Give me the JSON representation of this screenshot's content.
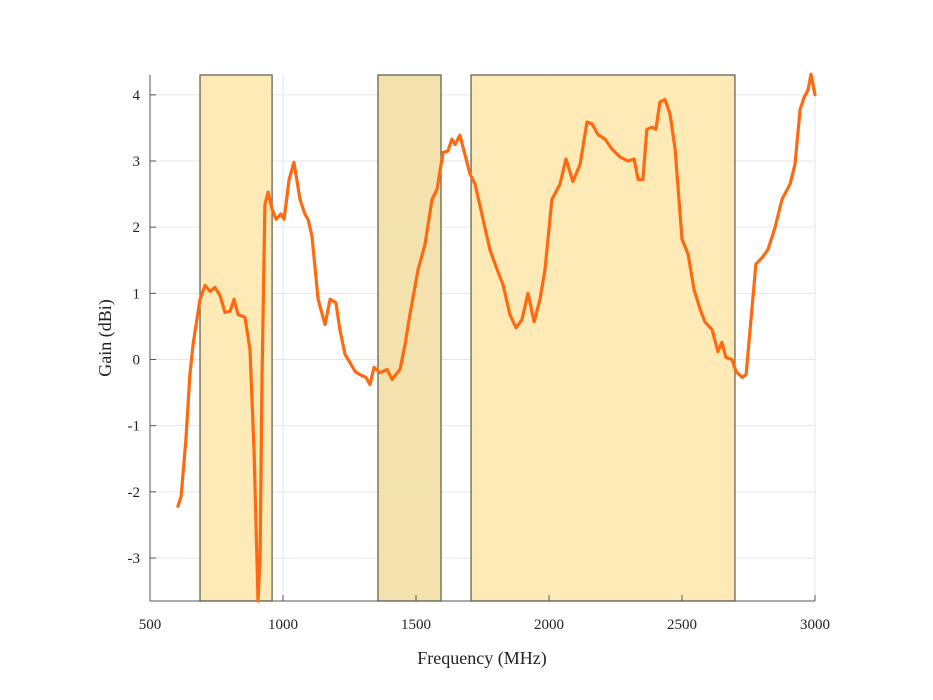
{
  "chart_data": {
    "type": "line",
    "title": "",
    "xlabel": "Frequency (MHz)",
    "ylabel": "Gain (dBi)",
    "xlim": [
      500,
      3000
    ],
    "ylim": [
      -3.65,
      4.3
    ],
    "xticks": [
      500,
      1000,
      1500,
      2000,
      2500,
      3000
    ],
    "yticks": [
      -3,
      -2,
      -1,
      0,
      1,
      2,
      3,
      4
    ],
    "grid": true,
    "colors": {
      "line": "#ff6a10",
      "band": "#fde8b0",
      "band_alt": "#f2dfa6",
      "band_edge": "#6b6352",
      "grid": "#e6e6e6"
    },
    "bands": [
      {
        "from": 688,
        "to": 959,
        "shade": "band"
      },
      {
        "from": 1357,
        "to": 1594,
        "shade": "band_alt"
      },
      {
        "from": 1707,
        "to": 2699,
        "shade": "band"
      }
    ],
    "series": [
      {
        "name": "Gain",
        "x": [
          605,
          617,
          635,
          650,
          662,
          688,
          707,
          726,
          744,
          763,
          782,
          801,
          816,
          831,
          857,
          876,
          891,
          902,
          906,
          914,
          921,
          932,
          944,
          959,
          974,
          992,
          1004,
          1023,
          1041,
          1064,
          1083,
          1094,
          1109,
          1132,
          1158,
          1177,
          1199,
          1214,
          1233,
          1271,
          1289,
          1312,
          1327,
          1342,
          1365,
          1391,
          1410,
          1440,
          1459,
          1477,
          1508,
          1534,
          1560,
          1579,
          1602,
          1620,
          1635,
          1647,
          1665,
          1684,
          1703,
          1722,
          1748,
          1778,
          1805,
          1827,
          1853,
          1876,
          1898,
          1921,
          1944,
          1966,
          1985,
          2011,
          2041,
          2064,
          2090,
          2117,
          2143,
          2162,
          2184,
          2211,
          2237,
          2267,
          2297,
          2320,
          2335,
          2353,
          2368,
          2387,
          2402,
          2417,
          2436,
          2455,
          2474,
          2500,
          2523,
          2545,
          2568,
          2586,
          2613,
          2635,
          2650,
          2665,
          2688,
          2703,
          2726,
          2741,
          2756,
          2778,
          2801,
          2823,
          2850,
          2876,
          2906,
          2925,
          2944,
          2959,
          2974,
          2985,
          3000
        ],
        "y": [
          -2.22,
          -2.07,
          -1.21,
          -0.23,
          0.23,
          0.91,
          1.12,
          1.03,
          1.09,
          0.97,
          0.71,
          0.73,
          0.91,
          0.68,
          0.64,
          0.15,
          -1.36,
          -3.0,
          -3.65,
          -3.0,
          -0.3,
          2.34,
          2.53,
          2.27,
          2.12,
          2.2,
          2.12,
          2.72,
          2.98,
          2.42,
          2.19,
          2.12,
          1.86,
          0.91,
          0.53,
          0.91,
          0.86,
          0.45,
          0.08,
          -0.18,
          -0.23,
          -0.27,
          -0.38,
          -0.12,
          -0.2,
          -0.15,
          -0.3,
          -0.15,
          0.23,
          0.68,
          1.36,
          1.74,
          2.42,
          2.57,
          3.13,
          3.15,
          3.33,
          3.25,
          3.39,
          3.1,
          2.8,
          2.65,
          2.19,
          1.66,
          1.36,
          1.13,
          0.68,
          0.48,
          0.6,
          1.0,
          0.57,
          0.91,
          1.36,
          2.42,
          2.65,
          3.03,
          2.69,
          2.95,
          3.59,
          3.56,
          3.4,
          3.33,
          3.18,
          3.06,
          3.0,
          3.03,
          2.72,
          2.72,
          3.48,
          3.51,
          3.48,
          3.89,
          3.93,
          3.71,
          3.18,
          1.82,
          1.59,
          1.06,
          0.76,
          0.57,
          0.45,
          0.12,
          0.26,
          0.03,
          0.0,
          -0.18,
          -0.27,
          -0.23,
          0.45,
          1.44,
          1.54,
          1.66,
          2.0,
          2.42,
          2.65,
          2.95,
          3.78,
          3.96,
          4.08,
          4.31,
          4.0
        ]
      }
    ]
  }
}
